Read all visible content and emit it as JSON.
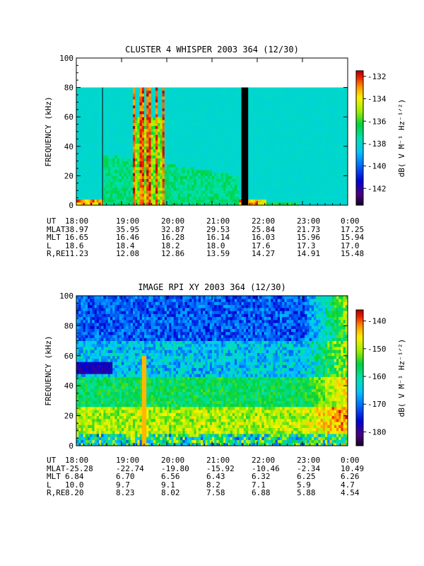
{
  "chart_data": [
    {
      "type": "heatmap",
      "title": "CLUSTER 4 WHISPER 2003 364 (12/30)",
      "ylabel": "FREQUENCY (kHz)",
      "y_ticks": [
        "0",
        "20",
        "40",
        "60",
        "80",
        "100"
      ],
      "ylim": [
        0,
        100
      ],
      "x_ticks": [
        "18:00",
        "19:00",
        "20:00",
        "21:00",
        "22:00",
        "23:00",
        "0:00"
      ],
      "xlim_hours": [
        18,
        24
      ],
      "colorbar_label": "dB( V M⁻¹ Hz⁻¹ᐟ²)",
      "colorbar_ticks": [
        "-132",
        "-134",
        "-136",
        "-138",
        "-140",
        "-142"
      ],
      "colorbar_range": [
        -143.5,
        -131.5
      ],
      "max_frequency_khz": 80,
      "data_gap_hours": [
        21.63,
        21.8
      ],
      "background_db": -138,
      "ephemeris": [
        {
          "label": "UT",
          "values": [
            "18:00",
            "19:00",
            "20:00",
            "21:00",
            "22:00",
            "23:00",
            "0:00"
          ]
        },
        {
          "label": "MLAT",
          "values": [
            "38.97",
            "35.95",
            "32.87",
            "29.53",
            "25.84",
            "21.73",
            "17.25"
          ]
        },
        {
          "label": "MLT",
          "values": [
            "16.65",
            "16.46",
            "16.28",
            "16.14",
            "16.03",
            "15.96",
            "15.94"
          ]
        },
        {
          "label": "L",
          "values": [
            "18.6",
            "18.4",
            "18.2",
            "18.0",
            "17.6",
            "17.3",
            "17.0"
          ]
        },
        {
          "label": "R,RE",
          "values": [
            "11.23",
            "12.08",
            "12.86",
            "13.59",
            "14.27",
            "14.91",
            "15.48"
          ]
        }
      ]
    },
    {
      "type": "heatmap",
      "title": "IMAGE RPI XY 2003 364 (12/30)",
      "ylabel": "FREQUENCY (kHz)",
      "y_ticks": [
        "0",
        "20",
        "40",
        "60",
        "80",
        "100"
      ],
      "ylim": [
        0,
        100
      ],
      "x_ticks": [
        "18:00",
        "19:00",
        "20:00",
        "21:00",
        "22:00",
        "23:00",
        "0:00"
      ],
      "xlim_hours": [
        18,
        24
      ],
      "colorbar_label": "dB( V M⁻¹ Hz⁻¹ᐟ²)",
      "colorbar_ticks": [
        "-140",
        "-150",
        "-160",
        "-170",
        "-180"
      ],
      "colorbar_range": [
        -185,
        -136
      ],
      "ephemeris": [
        {
          "label": "UT",
          "values": [
            "18:00",
            "19:00",
            "20:00",
            "21:00",
            "22:00",
            "23:00",
            "0:00"
          ]
        },
        {
          "label": "MLAT",
          "values": [
            "-25.28",
            "-22.74",
            "-19.80",
            "-15.92",
            "-10.46",
            "-2.34",
            "10.49"
          ]
        },
        {
          "label": "MLT",
          "values": [
            "6.84",
            "6.70",
            "6.56",
            "6.43",
            "6.32",
            "6.25",
            "6.26"
          ]
        },
        {
          "label": "L",
          "values": [
            "10.0",
            "9.7",
            "9.1",
            "8.2",
            "7.1",
            "5.9",
            "4.7"
          ]
        },
        {
          "label": "R,RE",
          "values": [
            "8.20",
            "8.23",
            "8.02",
            "7.58",
            "6.88",
            "5.88",
            "4.54"
          ]
        }
      ]
    }
  ]
}
